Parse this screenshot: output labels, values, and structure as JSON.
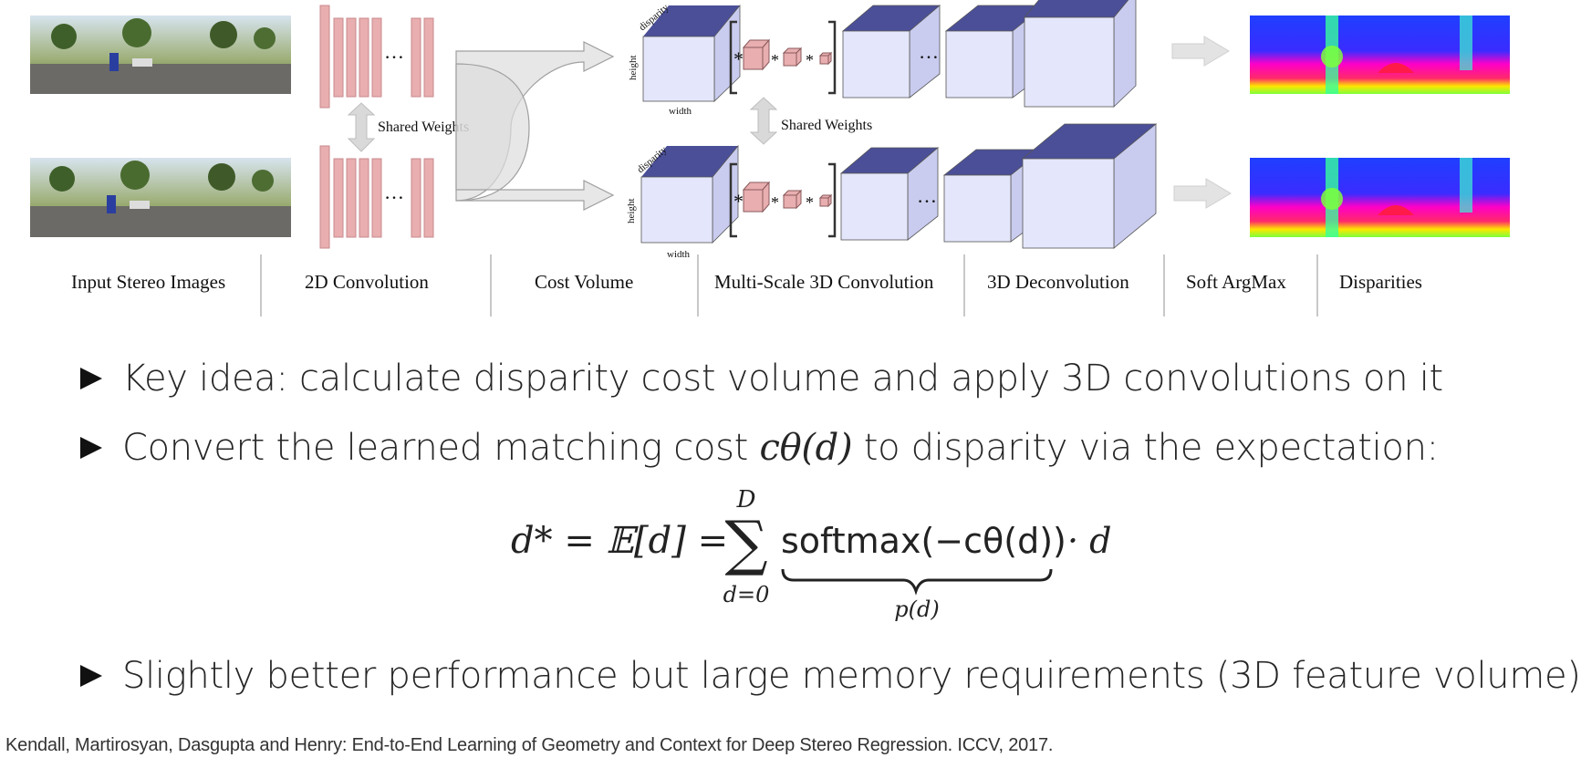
{
  "diagram": {
    "stages": [
      {
        "label": "Input Stereo Images"
      },
      {
        "label": "2D Convolution"
      },
      {
        "label": "Cost Volume"
      },
      {
        "label": "Multi-Scale 3D Convolution"
      },
      {
        "label": "3D Deconvolution"
      },
      {
        "label": "Soft ArgMax"
      },
      {
        "label": "Disparities"
      }
    ],
    "shared_weights_1": "Shared Weights",
    "shared_weights_2": "Shared Weights",
    "axis_disparity": "disparity",
    "axis_height": "height",
    "axis_width": "width",
    "ellipsis": "…"
  },
  "bullets": [
    {
      "text": "Key idea: calculate disparity cost volume and apply 3D convolutions on it"
    },
    {
      "prefix": "Convert the learned matching cost ",
      "math": "cθ(d)",
      "suffix": " to disparity via the expectation:"
    },
    {
      "text": "Slightly better performance but large memory requirements (3D feature volume)"
    }
  ],
  "formula": {
    "lhs": "d* = 𝔼[d] =",
    "sum_upper": "D",
    "sum_lower": "d=0",
    "softmax": "softmax(−cθ(d))",
    "times": "· d",
    "underbrace_label": "p(d)"
  },
  "citation": "Kendall, Martirosyan, Dasgupta and Henry: End-to-End Learning of Geometry and Context for Deep Stereo Regression. ICCV, 2017."
}
